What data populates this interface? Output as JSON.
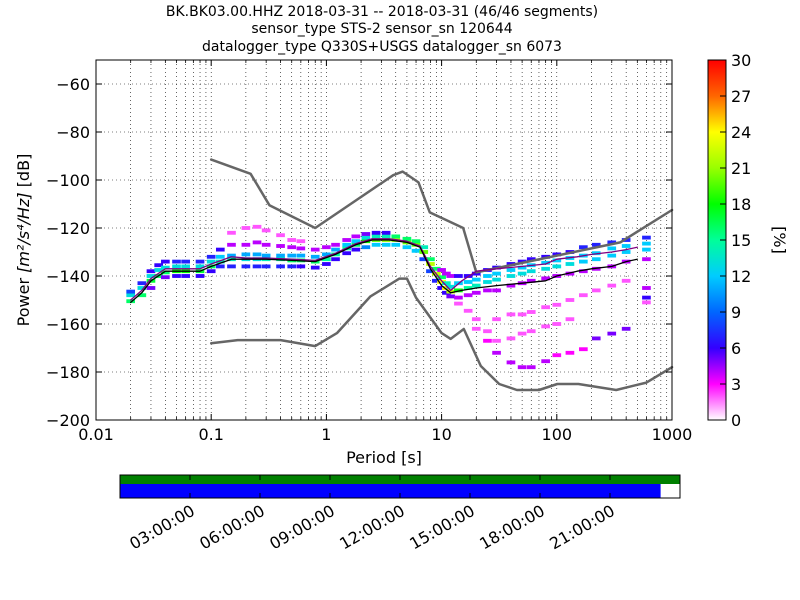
{
  "title_lines": [
    "BK.BK03.00.HHZ   2018-03-31 -- 2018-03-31  (46/46 segments)",
    "sensor_type STS-2 sensor_sn 120644",
    "datalogger_type Q330S+USGS datalogger_sn 6073"
  ],
  "chart_data": {
    "type": "heatmap",
    "subtype": "probabilistic power spectral density",
    "x_scale": "log",
    "xlim": [
      0.01,
      1000
    ],
    "ylim": [
      -200,
      -50
    ],
    "grid": "dotted",
    "xlabel": "Period [s]",
    "ylabel_main": "Power ",
    "ylabel_math": "[m²/s⁴/Hz]",
    "ylabel_unit": " [dB]",
    "x_ticks": [
      {
        "value": 0.01,
        "label": "0.01"
      },
      {
        "value": 0.1,
        "label": "0.1"
      },
      {
        "value": 1,
        "label": "1"
      },
      {
        "value": 10,
        "label": "10"
      },
      {
        "value": 100,
        "label": "100"
      },
      {
        "value": 1000,
        "label": "1000"
      }
    ],
    "y_ticks": [
      {
        "value": -60,
        "label": "−60"
      },
      {
        "value": -80,
        "label": "−80"
      },
      {
        "value": -100,
        "label": "−100"
      },
      {
        "value": -120,
        "label": "−120"
      },
      {
        "value": -140,
        "label": "−140"
      },
      {
        "value": -160,
        "label": "−160"
      },
      {
        "value": -180,
        "label": "−180"
      },
      {
        "value": -200,
        "label": "−200"
      }
    ],
    "noise_models": {
      "high": {
        "x": [
          0.1,
          0.22,
          0.32,
          0.8,
          3.8,
          4.6,
          6.3,
          7.9,
          15.4,
          20,
          354.8,
          1000
        ],
        "y": [
          -91.5,
          -97.4,
          -110.5,
          -120,
          -98,
          -96.5,
          -101,
          -113.5,
          -120,
          -138.5,
          -126,
          -112.5
        ]
      },
      "low": {
        "x": [
          0.1,
          0.17,
          0.4,
          0.8,
          1.24,
          2.4,
          4.3,
          5,
          6,
          10,
          12,
          15.6,
          21.9,
          31.6,
          45,
          70,
          101,
          154,
          328,
          600,
          1000
        ],
        "y": [
          -168,
          -166.7,
          -166.7,
          -169.2,
          -163.7,
          -148.6,
          -141.1,
          -141.1,
          -149,
          -163.8,
          -166.2,
          -162.1,
          -177.5,
          -185,
          -187.5,
          -187.5,
          -185,
          -185,
          -187.5,
          -184.4,
          -178
        ]
      }
    },
    "mean_curve": {
      "x": [
        0.02,
        0.025,
        0.03,
        0.04,
        0.06,
        0.08,
        0.1,
        0.15,
        0.2,
        0.3,
        0.5,
        0.8,
        1.2,
        1.8,
        2.5,
        3.5,
        5,
        6.5,
        8,
        10,
        12,
        15,
        20,
        30,
        50,
        80,
        100,
        150,
        200,
        300,
        400,
        500
      ],
      "y": [
        -151,
        -147,
        -142,
        -138,
        -138,
        -138,
        -136,
        -133,
        -133,
        -133,
        -133.5,
        -134,
        -131,
        -127,
        -125,
        -125,
        -126,
        -128,
        -137,
        -144,
        -147,
        -146,
        -145,
        -144,
        -143,
        -142,
        -140,
        -138,
        -137,
        -136,
        -134,
        -133
      ]
    },
    "median_curve": {
      "x": [
        0.02,
        0.025,
        0.03,
        0.04,
        0.06,
        0.08,
        0.1,
        0.15,
        0.2,
        0.3,
        0.5,
        0.8,
        1.2,
        1.8,
        2.5,
        3.5,
        5,
        6.5,
        8,
        10,
        12,
        15,
        20,
        30,
        50,
        80,
        100,
        150,
        200,
        300,
        400,
        500
      ],
      "y": [
        -150,
        -146,
        -141,
        -137,
        -137,
        -137,
        -135,
        -132,
        -132.5,
        -132.5,
        -133,
        -133.5,
        -130.5,
        -126.5,
        -124.5,
        -124.5,
        -125.5,
        -127.5,
        -136,
        -142,
        -146,
        -142,
        -138,
        -137,
        -136,
        -135,
        -133,
        -132,
        -131,
        -130,
        -129,
        -128
      ]
    },
    "cells": [
      [
        0.02,
        -150.5,
        16
      ],
      [
        0.02,
        -148.0,
        13
      ],
      [
        0.02,
        -146.5,
        8
      ],
      [
        0.025,
        -148.0,
        16
      ],
      [
        0.025,
        -145.0,
        13
      ],
      [
        0.025,
        -143.0,
        7
      ],
      [
        0.03,
        -142.0,
        17
      ],
      [
        0.03,
        -140.0,
        13
      ],
      [
        0.03,
        -138.0,
        6
      ],
      [
        0.03,
        -145.0,
        5
      ],
      [
        0.035,
        -140.0,
        16
      ],
      [
        0.035,
        -137.5,
        13
      ],
      [
        0.035,
        -135.5,
        6
      ],
      [
        0.04,
        -138.5,
        16
      ],
      [
        0.04,
        -136.5,
        13
      ],
      [
        0.04,
        -134.0,
        6
      ],
      [
        0.04,
        -140.5,
        5
      ],
      [
        0.05,
        -138.0,
        18
      ],
      [
        0.05,
        -136.0,
        13
      ],
      [
        0.05,
        -134.0,
        7
      ],
      [
        0.05,
        -140.0,
        6
      ],
      [
        0.06,
        -138.0,
        18
      ],
      [
        0.06,
        -136.0,
        13
      ],
      [
        0.06,
        -134.0,
        7
      ],
      [
        0.06,
        -140.0,
        6
      ],
      [
        0.08,
        -138.0,
        17
      ],
      [
        0.08,
        -136.0,
        13
      ],
      [
        0.08,
        -134.0,
        7
      ],
      [
        0.08,
        -140.0,
        6
      ],
      [
        0.1,
        -136.0,
        16
      ],
      [
        0.1,
        -134.0,
        13
      ],
      [
        0.1,
        -132.0,
        7
      ],
      [
        0.1,
        -138.0,
        6
      ],
      [
        0.12,
        -134.0,
        14
      ],
      [
        0.12,
        -132.0,
        12
      ],
      [
        0.12,
        -129.0,
        6
      ],
      [
        0.12,
        -136.0,
        7
      ],
      [
        0.15,
        -133.0,
        14
      ],
      [
        0.15,
        -131.5,
        11
      ],
      [
        0.15,
        -127.0,
        4
      ],
      [
        0.15,
        -122.0,
        2
      ],
      [
        0.15,
        -136.0,
        7
      ],
      [
        0.2,
        -133.0,
        13
      ],
      [
        0.2,
        -131.0,
        11
      ],
      [
        0.2,
        -127.0,
        4
      ],
      [
        0.2,
        -120.0,
        2
      ],
      [
        0.2,
        -136.0,
        7
      ],
      [
        0.25,
        -133.0,
        13
      ],
      [
        0.25,
        -131.0,
        11
      ],
      [
        0.25,
        -126.0,
        4
      ],
      [
        0.25,
        -119.5,
        2
      ],
      [
        0.25,
        -136.0,
        7
      ],
      [
        0.3,
        -133.0,
        14
      ],
      [
        0.3,
        -131.5,
        11
      ],
      [
        0.3,
        -127.0,
        4
      ],
      [
        0.3,
        -121.0,
        2
      ],
      [
        0.3,
        -136.0,
        7
      ],
      [
        0.4,
        -133.0,
        15
      ],
      [
        0.4,
        -131.5,
        11
      ],
      [
        0.4,
        -127.5,
        4
      ],
      [
        0.4,
        -123.0,
        2
      ],
      [
        0.4,
        -136.0,
        7
      ],
      [
        0.5,
        -133.5,
        16
      ],
      [
        0.5,
        -131.5,
        11
      ],
      [
        0.5,
        -128.0,
        4
      ],
      [
        0.5,
        -125.0,
        2
      ],
      [
        0.5,
        -136.0,
        7
      ],
      [
        0.6,
        -133.5,
        16
      ],
      [
        0.6,
        -131.5,
        11
      ],
      [
        0.6,
        -128.5,
        4
      ],
      [
        0.6,
        -125.5,
        2
      ],
      [
        0.6,
        -136.0,
        6
      ],
      [
        0.8,
        -134.0,
        16
      ],
      [
        0.8,
        -132.0,
        11
      ],
      [
        0.8,
        -129.0,
        4
      ],
      [
        0.8,
        -136.5,
        6
      ],
      [
        1.0,
        -133.0,
        15
      ],
      [
        1.0,
        -131.0,
        11
      ],
      [
        1.0,
        -128.0,
        4
      ],
      [
        1.0,
        -135.0,
        6
      ],
      [
        1.2,
        -131.0,
        15
      ],
      [
        1.2,
        -129.0,
        11
      ],
      [
        1.2,
        -127.0,
        4
      ],
      [
        1.2,
        -133.0,
        6
      ],
      [
        1.5,
        -128.5,
        15
      ],
      [
        1.5,
        -127.0,
        12
      ],
      [
        1.5,
        -125.0,
        4
      ],
      [
        1.5,
        -130.5,
        6
      ],
      [
        1.8,
        -127.0,
        16
      ],
      [
        1.8,
        -125.5,
        12
      ],
      [
        1.8,
        -123.5,
        4
      ],
      [
        1.8,
        -129.0,
        6
      ],
      [
        2.2,
        -125.5,
        18
      ],
      [
        2.2,
        -124.0,
        13
      ],
      [
        2.2,
        -122.5,
        5
      ],
      [
        2.2,
        -128.0,
        10
      ],
      [
        2.7,
        -125.0,
        20
      ],
      [
        2.7,
        -123.5,
        14
      ],
      [
        2.7,
        -122.0,
        6
      ],
      [
        2.7,
        -127.0,
        12
      ],
      [
        3.3,
        -125.0,
        21
      ],
      [
        3.3,
        -123.5,
        14
      ],
      [
        3.3,
        -122.0,
        6
      ],
      [
        3.3,
        -127.0,
        12
      ],
      [
        4.0,
        -125.0,
        21
      ],
      [
        4.0,
        -123.5,
        16
      ],
      [
        4.0,
        -127.0,
        12
      ],
      [
        5.0,
        -126.0,
        20
      ],
      [
        5.0,
        -124.5,
        16
      ],
      [
        5.0,
        -128.0,
        12
      ],
      [
        6.0,
        -127.0,
        20
      ],
      [
        6.0,
        -125.5,
        16
      ],
      [
        6.0,
        -129.5,
        12
      ],
      [
        7.0,
        -130.0,
        20
      ],
      [
        7.0,
        -128.0,
        14
      ],
      [
        7.0,
        -133.0,
        8
      ],
      [
        8.0,
        -135.0,
        22
      ],
      [
        8.0,
        -133.0,
        16
      ],
      [
        8.0,
        -138.0,
        8
      ],
      [
        9.0,
        -139.0,
        22
      ],
      [
        9.0,
        -137.0,
        16
      ],
      [
        9.0,
        -142.0,
        7
      ],
      [
        10.0,
        -142.5,
        24
      ],
      [
        10.0,
        -140.5,
        16
      ],
      [
        10.0,
        -145.0,
        6
      ],
      [
        10.0,
        -137.5,
        4
      ],
      [
        11.0,
        -145.0,
        24
      ],
      [
        11.0,
        -143.0,
        14
      ],
      [
        11.0,
        -147.0,
        6
      ],
      [
        11.0,
        -139.0,
        4
      ],
      [
        12.0,
        -146.5,
        22
      ],
      [
        12.0,
        -144.5,
        13
      ],
      [
        12.0,
        -148.5,
        5
      ],
      [
        12.0,
        -140.0,
        4
      ],
      [
        14.0,
        -146.0,
        18
      ],
      [
        14.0,
        -143.0,
        12
      ],
      [
        14.0,
        -140.0,
        6
      ],
      [
        14.0,
        -149.0,
        4
      ],
      [
        14.0,
        -151.5,
        2
      ],
      [
        17.0,
        -145.0,
        15
      ],
      [
        17.0,
        -142.5,
        12
      ],
      [
        17.0,
        -140.0,
        6
      ],
      [
        17.0,
        -148.0,
        4
      ],
      [
        17.0,
        -154.5,
        2
      ],
      [
        20.0,
        -144.0,
        14
      ],
      [
        20.0,
        -141.5,
        12
      ],
      [
        20.0,
        -139.0,
        6
      ],
      [
        20.0,
        -147.0,
        4
      ],
      [
        20.0,
        -158.0,
        2
      ],
      [
        20.0,
        -162.0,
        2
      ],
      [
        25.0,
        -142.5,
        13
      ],
      [
        25.0,
        -140.0,
        12
      ],
      [
        25.0,
        -137.5,
        6
      ],
      [
        25.0,
        -146.0,
        4
      ],
      [
        25.0,
        -163.0,
        2
      ],
      [
        25.0,
        -167.0,
        3
      ],
      [
        30.0,
        -141.5,
        13
      ],
      [
        30.0,
        -139.0,
        12
      ],
      [
        30.0,
        -136.5,
        6
      ],
      [
        30.0,
        -146.0,
        4
      ],
      [
        30.0,
        -158.0,
        2
      ],
      [
        30.0,
        -167.0,
        2
      ],
      [
        30.0,
        -172.0,
        4
      ],
      [
        40.0,
        -140.0,
        13
      ],
      [
        40.0,
        -137.5,
        12
      ],
      [
        40.0,
        -135.0,
        6
      ],
      [
        40.0,
        -144.0,
        4
      ],
      [
        40.0,
        -156.0,
        2
      ],
      [
        40.0,
        -166.0,
        2
      ],
      [
        40.0,
        -176.0,
        4
      ],
      [
        50.0,
        -139.0,
        13
      ],
      [
        50.0,
        -136.5,
        12
      ],
      [
        50.0,
        -134.0,
        6
      ],
      [
        50.0,
        -143.0,
        4
      ],
      [
        50.0,
        -156.0,
        2
      ],
      [
        50.0,
        -164.0,
        2
      ],
      [
        50.0,
        -178.0,
        4
      ],
      [
        60.0,
        -138.0,
        13
      ],
      [
        60.0,
        -135.5,
        12
      ],
      [
        60.0,
        -133.0,
        6
      ],
      [
        60.0,
        -142.0,
        4
      ],
      [
        60.0,
        -155.0,
        2
      ],
      [
        60.0,
        -163.0,
        2
      ],
      [
        60.0,
        -178.0,
        4
      ],
      [
        80.0,
        -137.0,
        13
      ],
      [
        80.0,
        -134.5,
        12
      ],
      [
        80.0,
        -132.0,
        6
      ],
      [
        80.0,
        -141.0,
        4
      ],
      [
        80.0,
        -153.0,
        2
      ],
      [
        80.0,
        -161.0,
        2
      ],
      [
        80.0,
        -175.5,
        4
      ],
      [
        100.0,
        -136.0,
        13
      ],
      [
        100.0,
        -133.5,
        12
      ],
      [
        100.0,
        -131.0,
        6
      ],
      [
        100.0,
        -140.0,
        4
      ],
      [
        100.0,
        -152.0,
        2
      ],
      [
        100.0,
        -160.0,
        2
      ],
      [
        100.0,
        -173.0,
        3
      ],
      [
        130.0,
        -135.0,
        13
      ],
      [
        130.0,
        -132.5,
        12
      ],
      [
        130.0,
        -130.0,
        6
      ],
      [
        130.0,
        -139.0,
        4
      ],
      [
        130.0,
        -150.0,
        2
      ],
      [
        130.0,
        -158.0,
        2
      ],
      [
        130.0,
        -172.0,
        3
      ],
      [
        170.0,
        -134.0,
        12
      ],
      [
        170.0,
        -131.5,
        12
      ],
      [
        170.0,
        -128.0,
        7
      ],
      [
        170.0,
        -138.0,
        4
      ],
      [
        170.0,
        -148.0,
        2
      ],
      [
        170.0,
        -170.5,
        3
      ],
      [
        220.0,
        -133.0,
        12
      ],
      [
        220.0,
        -130.5,
        12
      ],
      [
        220.0,
        -127.0,
        7
      ],
      [
        220.0,
        -137.0,
        4
      ],
      [
        220.0,
        -146.0,
        2
      ],
      [
        220.0,
        -166.0,
        5
      ],
      [
        300.0,
        -131.5,
        12
      ],
      [
        300.0,
        -128.5,
        12
      ],
      [
        300.0,
        -126.0,
        7
      ],
      [
        300.0,
        -136.0,
        4
      ],
      [
        300.0,
        -144.0,
        2
      ],
      [
        300.0,
        -164.0,
        5
      ],
      [
        400.0,
        -130.0,
        12
      ],
      [
        400.0,
        -127.5,
        12
      ],
      [
        400.0,
        -125.0,
        7
      ],
      [
        400.0,
        -134.0,
        4
      ],
      [
        400.0,
        -142.0,
        2
      ],
      [
        400.0,
        -162.0,
        5
      ],
      [
        600.0,
        -129.0,
        12
      ],
      [
        600.0,
        -126.5,
        12
      ],
      [
        600.0,
        -124.0,
        7
      ],
      [
        600.0,
        -133.0,
        4
      ],
      [
        600.0,
        -145.0,
        4
      ],
      [
        600.0,
        -149.0,
        6
      ],
      [
        600.0,
        -151.0,
        2
      ]
    ]
  },
  "colorbar": {
    "label": "[%]",
    "min": 0,
    "max": 30,
    "ticks": [
      {
        "value": 0,
        "label": "0"
      },
      {
        "value": 3,
        "label": "3"
      },
      {
        "value": 6,
        "label": "6"
      },
      {
        "value": 9,
        "label": "9"
      },
      {
        "value": 12,
        "label": "12"
      },
      {
        "value": 15,
        "label": "15"
      },
      {
        "value": 18,
        "label": "18"
      },
      {
        "value": 21,
        "label": "21"
      },
      {
        "value": 24,
        "label": "24"
      },
      {
        "value": 27,
        "label": "27"
      },
      {
        "value": 30,
        "label": "30"
      }
    ]
  },
  "data_coverage": {
    "day_start": "2018-03-31 00:00:00",
    "coverage_end": "2018-03-31 23:10:00",
    "time_ticks": [
      "03:00:00",
      "06:00:00",
      "09:00:00",
      "12:00:00",
      "15:00:00",
      "18:00:00",
      "21:00:00"
    ],
    "top_color": "#008000",
    "bottom_color": "#0000ff"
  },
  "colors": {
    "noise_model": "#666666",
    "mean_curve": "#000000",
    "median_curve": "#800080"
  }
}
